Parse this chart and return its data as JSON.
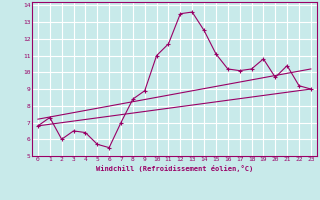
{
  "xlabel": "Windchill (Refroidissement éolien,°C)",
  "ylabel": "",
  "bg_color": "#c8eaea",
  "line_color": "#990066",
  "grid_color": "#ffffff",
  "xlim": [
    -0.5,
    23.5
  ],
  "ylim": [
    5,
    14.2
  ],
  "xticks": [
    0,
    1,
    2,
    3,
    4,
    5,
    6,
    7,
    8,
    9,
    10,
    11,
    12,
    13,
    14,
    15,
    16,
    17,
    18,
    19,
    20,
    21,
    22,
    23
  ],
  "yticks": [
    5,
    6,
    7,
    8,
    9,
    10,
    11,
    12,
    13,
    14
  ],
  "line1_x": [
    0,
    1,
    2,
    3,
    4,
    5,
    6,
    7,
    8,
    9,
    10,
    11,
    12,
    13,
    14,
    15,
    16,
    17,
    18,
    19,
    20,
    21,
    22,
    23
  ],
  "line1_y": [
    6.8,
    7.3,
    6.0,
    6.5,
    6.4,
    5.7,
    5.5,
    7.0,
    8.4,
    8.9,
    11.0,
    11.7,
    13.5,
    13.6,
    12.5,
    11.1,
    10.2,
    10.1,
    10.2,
    10.8,
    9.7,
    10.4,
    9.2,
    9.0
  ],
  "line2_x": [
    0,
    23
  ],
  "line2_y": [
    6.8,
    9.0
  ],
  "line3_x": [
    0,
    23
  ],
  "line3_y": [
    7.2,
    10.2
  ]
}
